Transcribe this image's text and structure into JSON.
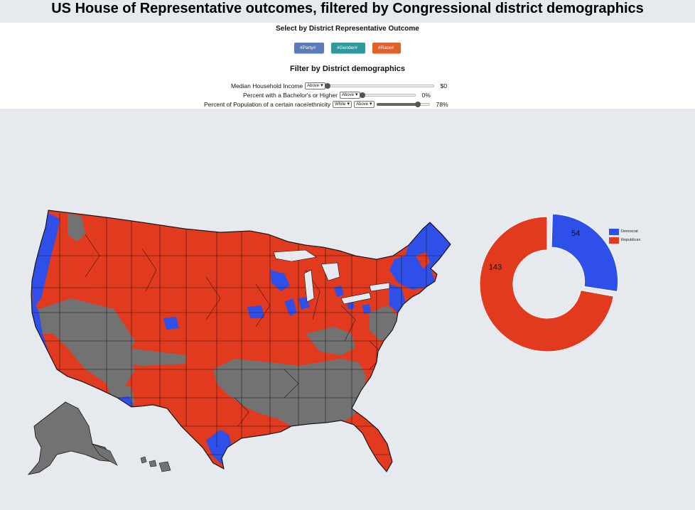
{
  "page_title": "US House of Representative outcomes, filtered by Congressional district demographics",
  "select_section": {
    "title": "Select by District Representative Outcome",
    "buttons": [
      {
        "label": "#Party#",
        "color": "#5b7bb9"
      },
      {
        "label": "#Gender#",
        "color": "#2e9aa0"
      },
      {
        "label": "#Race#",
        "color": "#e0612a"
      }
    ]
  },
  "filter_section": {
    "title": "Filter by District demographics",
    "income": {
      "label": "Median Household Income",
      "comparator": "Above",
      "value_text": "$0",
      "level": 0
    },
    "education": {
      "label": "Percent with a Bachelor's or Higher",
      "comparator": "Above",
      "value_text": "0%",
      "level": 0
    },
    "race": {
      "label": "Percent of Population of a certain race/ethnicity",
      "race_option": "White",
      "comparator": "Above",
      "value_text": "78%",
      "level": 0.78
    }
  },
  "map": {
    "colors": {
      "democrat": "#2f50e8",
      "republican": "#e23a1f",
      "filtered_out": "#727272",
      "border": "#111111"
    }
  },
  "chart_data": {
    "type": "pie",
    "style": "donut",
    "slices": [
      {
        "label": "Democrat",
        "value": 54,
        "color": "#2f50e8"
      },
      {
        "label": "Republican",
        "value": 143,
        "color": "#e23a1f"
      }
    ],
    "data_labels": [
      "54",
      "143"
    ],
    "legend": {
      "placement": "right",
      "entries": [
        "Democrat",
        "Republican"
      ]
    }
  }
}
